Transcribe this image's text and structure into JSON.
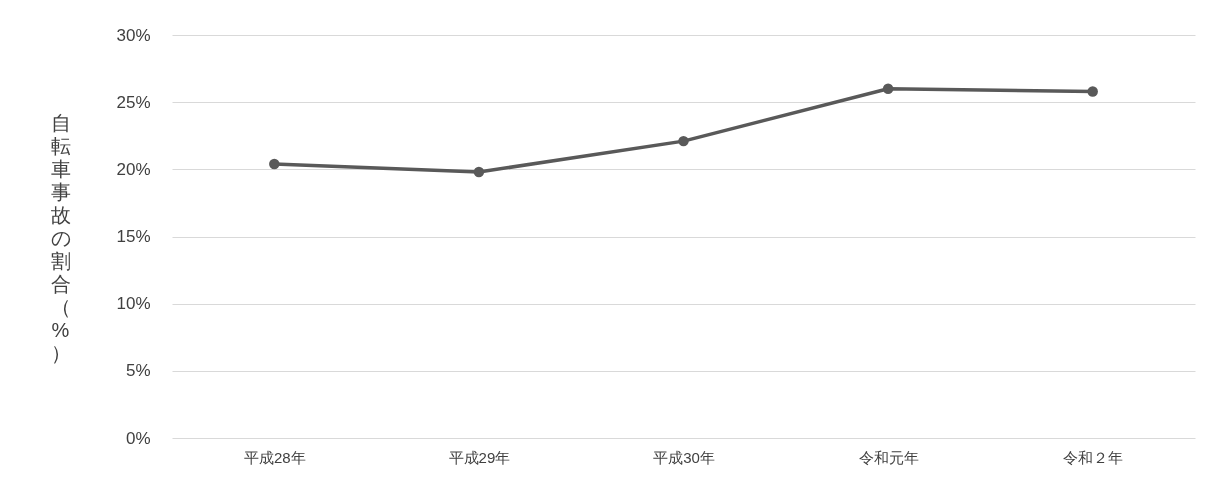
{
  "chart_data": {
    "type": "line",
    "ylabel": "自転車事故の割合（%）",
    "categories": [
      "平成28年",
      "平成29年",
      "平成30年",
      "令和元年",
      "令和２年"
    ],
    "series": [
      {
        "color": "#595959",
        "values": [
          20.4,
          19.8,
          22.1,
          26.0,
          25.8
        ]
      }
    ],
    "ylim": [
      0,
      30
    ],
    "yticks": [
      {
        "value": 0,
        "label": "0%"
      },
      {
        "value": 5,
        "label": "5%"
      },
      {
        "value": 10,
        "label": "10%"
      },
      {
        "value": 15,
        "label": "15%"
      },
      {
        "value": 20,
        "label": "20%"
      },
      {
        "value": 25,
        "label": "25%"
      },
      {
        "value": 30,
        "label": "30%"
      }
    ],
    "grid": "y",
    "marker": "circle",
    "line_style": "solid"
  }
}
